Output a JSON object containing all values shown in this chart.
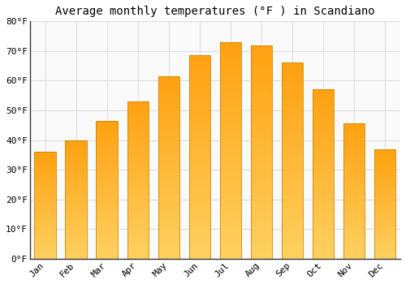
{
  "title": "Average monthly temperatures (°F ) in Scandiano",
  "months": [
    "Jan",
    "Feb",
    "Mar",
    "Apr",
    "May",
    "Jun",
    "Jul",
    "Aug",
    "Sep",
    "Oct",
    "Nov",
    "Dec"
  ],
  "values": [
    36,
    40,
    46.5,
    53,
    61.5,
    68.5,
    73,
    72,
    66,
    57,
    45.5,
    37
  ],
  "bar_color_bottom": "#FFD060",
  "bar_color_top": "#FFA010",
  "bar_edge_color": "#CC8800",
  "background_color": "#FFFFFF",
  "plot_bg_color": "#FAFAFA",
  "grid_color": "#DDDDDD",
  "ylim": [
    0,
    80
  ],
  "yticks": [
    0,
    10,
    20,
    30,
    40,
    50,
    60,
    70,
    80
  ],
  "ytick_labels": [
    "0°F",
    "10°F",
    "20°F",
    "30°F",
    "40°F",
    "50°F",
    "60°F",
    "70°F",
    "80°F"
  ],
  "title_fontsize": 10,
  "tick_fontsize": 8,
  "font_family": "monospace",
  "bar_width": 0.7,
  "n_segments": 80
}
